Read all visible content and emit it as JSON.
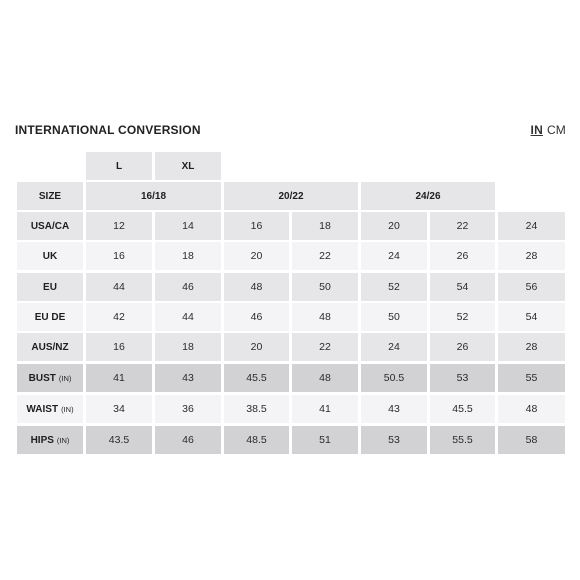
{
  "title": "INTERNATIONAL CONVERSION",
  "units": [
    {
      "label": "IN",
      "active": true
    },
    {
      "label": "CM",
      "active": false
    }
  ],
  "size_letters": [
    "L",
    "XL"
  ],
  "size_row": {
    "label": "SIZE",
    "groups": [
      "16/18",
      "20/22",
      "24/26"
    ]
  },
  "rows": [
    {
      "label": "USA/CA",
      "unit": "",
      "shade": "a",
      "values": [
        "12",
        "14",
        "16",
        "18",
        "20",
        "22",
        "24"
      ]
    },
    {
      "label": "UK",
      "unit": "",
      "shade": "b",
      "values": [
        "16",
        "18",
        "20",
        "22",
        "24",
        "26",
        "28"
      ]
    },
    {
      "label": "EU",
      "unit": "",
      "shade": "a",
      "values": [
        "44",
        "46",
        "48",
        "50",
        "52",
        "54",
        "56"
      ]
    },
    {
      "label": "EU DE",
      "unit": "",
      "shade": "b",
      "values": [
        "42",
        "44",
        "46",
        "48",
        "50",
        "52",
        "54"
      ]
    },
    {
      "label": "AUS/NZ",
      "unit": "",
      "shade": "a",
      "values": [
        "16",
        "18",
        "20",
        "22",
        "24",
        "26",
        "28"
      ]
    },
    {
      "label": "BUST",
      "unit": "(IN)",
      "shade": "c",
      "values": [
        "41",
        "43",
        "45.5",
        "48",
        "50.5",
        "53",
        "55"
      ]
    },
    {
      "label": "WAIST",
      "unit": "(IN)",
      "shade": "b",
      "values": [
        "34",
        "36",
        "38.5",
        "41",
        "43",
        "45.5",
        "48"
      ]
    },
    {
      "label": "HIPS",
      "unit": "(IN)",
      "shade": "c",
      "values": [
        "43.5",
        "46",
        "48.5",
        "51",
        "53",
        "55.5",
        "58"
      ]
    }
  ]
}
